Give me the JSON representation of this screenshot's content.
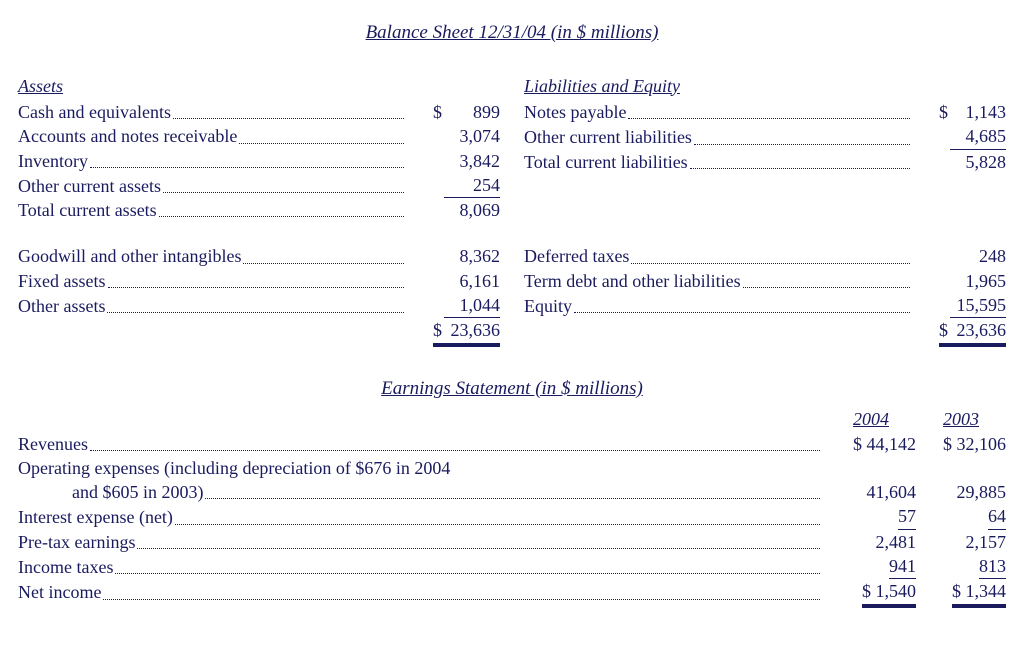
{
  "colors": {
    "text": "#1a1a5f",
    "background": "#ffffff"
  },
  "typography": {
    "font_family": "Times New Roman",
    "base_fontsize_pt": 14
  },
  "balance_sheet": {
    "title": "Balance Sheet 12/31/04 (in $ millions)",
    "assets": {
      "heading": "Assets",
      "rows": [
        {
          "label": "Cash and equivalents",
          "symbol": "$",
          "value": "899"
        },
        {
          "label": "Accounts and notes receivable",
          "value": "3,074"
        },
        {
          "label": "Inventory",
          "value": "3,842"
        },
        {
          "label": "Other current assets",
          "value": "254",
          "underline": "single"
        },
        {
          "label": "Total current assets",
          "value": "8,069"
        }
      ],
      "rows2": [
        {
          "label": "Goodwill and other intangibles",
          "value": "8,362"
        },
        {
          "label": "Fixed assets",
          "value": "6,161"
        },
        {
          "label": "Other assets",
          "value": "1,044",
          "underline": "single"
        }
      ],
      "total": {
        "symbol": "$",
        "value": "23,636",
        "underline": "double"
      }
    },
    "liab_equity": {
      "heading": "Liabilities and Equity",
      "rows": [
        {
          "label": "Notes payable",
          "symbol": "$",
          "value": "1,143"
        },
        {
          "label": "Other current liabilities",
          "value": "4,685",
          "underline": "single"
        },
        {
          "label": "Total current liabilities",
          "value": "5,828"
        }
      ],
      "rows2": [
        {
          "label": "Deferred taxes",
          "value": "248"
        },
        {
          "label": "Term debt and other liabilities",
          "value": "1,965"
        },
        {
          "label": "Equity",
          "value": "15,595",
          "underline": "single"
        }
      ],
      "total": {
        "symbol": "$",
        "value": "23,636",
        "underline": "double"
      }
    }
  },
  "earnings": {
    "title": "Earnings Statement (in $ millions)",
    "year1": "2004",
    "year2": "2003",
    "rows": [
      {
        "label": "Revenues",
        "v1_sym": "$",
        "v1": "44,142",
        "v2_sym": "$",
        "v2": "32,106"
      },
      {
        "label_line1": "Operating expenses (including depreciation of $676 in 2004",
        "label_line2": "and $605 in 2003)",
        "v1": "41,604",
        "v2": "29,885",
        "two_line": true
      },
      {
        "label": "Interest expense (net)",
        "v1": "57",
        "v2": "64",
        "underline": "single"
      },
      {
        "label": "Pre-tax earnings",
        "v1": "2,481",
        "v2": "2,157"
      },
      {
        "label": "Income taxes",
        "v1": "941",
        "v2": "813",
        "underline": "single"
      },
      {
        "label": "Net income",
        "v1_sym": "$",
        "v1": "1,540",
        "v2_sym": "$",
        "v2": "1,344",
        "underline": "double"
      }
    ]
  }
}
